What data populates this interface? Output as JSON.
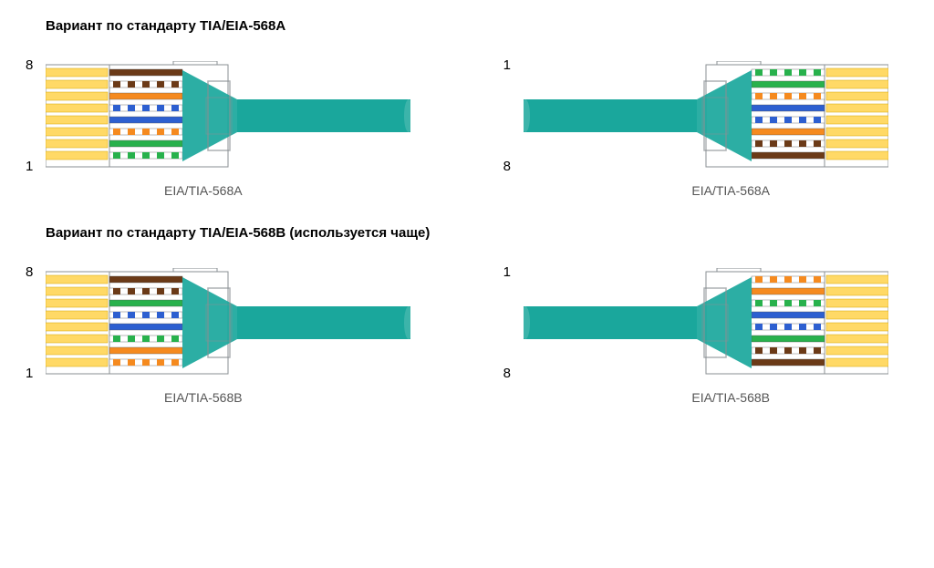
{
  "colors": {
    "cable": "#1aa79c",
    "plug_body": "#c9cdd0",
    "plug_border": "#8a8f93",
    "pin_gold": "#ffd966",
    "pin_gold_dark": "#d6a400",
    "bg": "#ffffff"
  },
  "wire_colors": {
    "white": "#ffffff",
    "green": "#28b14c",
    "orange": "#f58a1f",
    "blue": "#2d5fd0",
    "brown": "#6b3a17"
  },
  "dimensions": {
    "plug_width": 120,
    "plug_height": 108,
    "boot_len": 70,
    "cable_len": 130,
    "cable_thick": 34,
    "wire_spacing": 13
  },
  "tia568a": [
    {
      "stripe": true,
      "color": "green"
    },
    {
      "stripe": false,
      "color": "green"
    },
    {
      "stripe": true,
      "color": "orange"
    },
    {
      "stripe": false,
      "color": "blue"
    },
    {
      "stripe": true,
      "color": "blue"
    },
    {
      "stripe": false,
      "color": "orange"
    },
    {
      "stripe": true,
      "color": "brown"
    },
    {
      "stripe": false,
      "color": "brown"
    }
  ],
  "tia568b": [
    {
      "stripe": true,
      "color": "orange"
    },
    {
      "stripe": false,
      "color": "orange"
    },
    {
      "stripe": true,
      "color": "green"
    },
    {
      "stripe": false,
      "color": "blue"
    },
    {
      "stripe": true,
      "color": "blue"
    },
    {
      "stripe": false,
      "color": "green"
    },
    {
      "stripe": true,
      "color": "brown"
    },
    {
      "stripe": false,
      "color": "brown"
    }
  ],
  "text": {
    "title_a": "Вариант по стандарту TIA/EIA-568A",
    "title_b": "Вариант по стандарту TIA/EIA-568B (используется чаще)",
    "label_a": "EIA/TIA-568A",
    "label_b": "EIA/TIA-568B",
    "pin1": "1",
    "pin8": "8"
  }
}
